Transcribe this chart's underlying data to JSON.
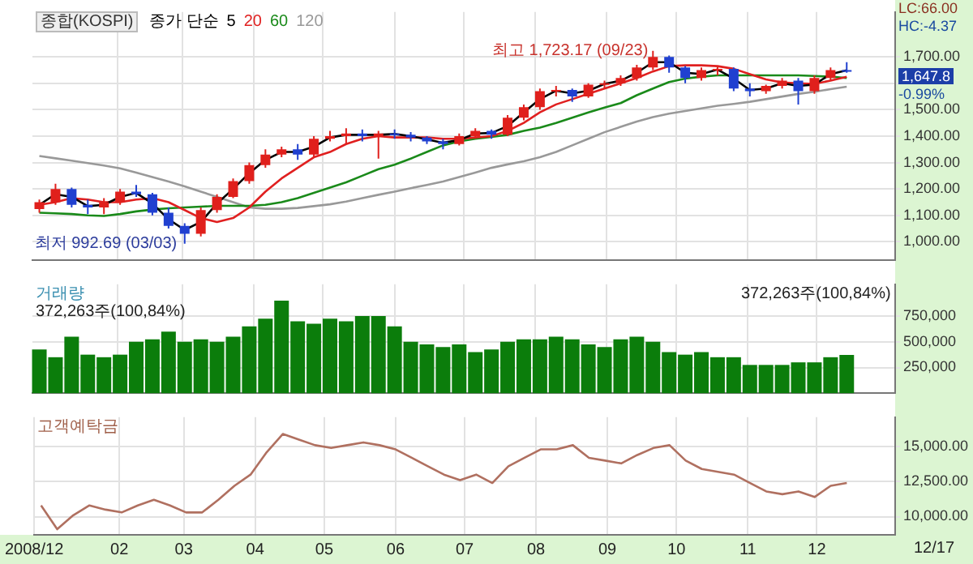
{
  "chart_data": [
    {
      "type": "candlestick",
      "title": "종합(KOSPI)",
      "legend_title": "종가 단순",
      "legend": "top left",
      "grid": true,
      "tick_labels": "y",
      "x": [
        "2008-12-29",
        "2009-01-05",
        "2009-01-12",
        "2009-01-19",
        "2009-01-26",
        "2009-02-02",
        "2009-02-09",
        "2009-02-16",
        "2009-02-23",
        "2009-03-02",
        "2009-03-09",
        "2009-03-16",
        "2009-03-23",
        "2009-03-30",
        "2009-04-06",
        "2009-04-13",
        "2009-04-20",
        "2009-04-27",
        "2009-05-04",
        "2009-05-11",
        "2009-05-18",
        "2009-05-25",
        "2009-06-01",
        "2009-06-08",
        "2009-06-15",
        "2009-06-22",
        "2009-06-29",
        "2009-07-06",
        "2009-07-13",
        "2009-07-20",
        "2009-07-27",
        "2009-08-03",
        "2009-08-10",
        "2009-08-17",
        "2009-08-24",
        "2009-08-31",
        "2009-09-07",
        "2009-09-14",
        "2009-09-21",
        "2009-09-28",
        "2009-10-05",
        "2009-10-12",
        "2009-10-19",
        "2009-10-26",
        "2009-11-02",
        "2009-11-09",
        "2009-11-16",
        "2009-11-23",
        "2009-11-30",
        "2009-12-07",
        "2009-12-14"
      ],
      "ohlc": [
        [
          1124,
          1160,
          1110,
          1150
        ],
        [
          1150,
          1220,
          1140,
          1200
        ],
        [
          1200,
          1205,
          1130,
          1140
        ],
        [
          1140,
          1160,
          1105,
          1130
        ],
        [
          1130,
          1165,
          1105,
          1150
        ],
        [
          1150,
          1200,
          1140,
          1190
        ],
        [
          1190,
          1215,
          1170,
          1180
        ],
        [
          1180,
          1185,
          1100,
          1110
        ],
        [
          1110,
          1130,
          1050,
          1060
        ],
        [
          1060,
          1070,
          992.69,
          1030
        ],
        [
          1030,
          1130,
          1020,
          1120
        ],
        [
          1120,
          1180,
          1110,
          1170
        ],
        [
          1170,
          1240,
          1165,
          1230
        ],
        [
          1230,
          1300,
          1220,
          1290
        ],
        [
          1290,
          1350,
          1280,
          1330
        ],
        [
          1330,
          1360,
          1320,
          1350
        ],
        [
          1350,
          1370,
          1310,
          1330
        ],
        [
          1330,
          1400,
          1320,
          1390
        ],
        [
          1390,
          1420,
          1380,
          1400
        ],
        [
          1400,
          1430,
          1370,
          1410
        ],
        [
          1410,
          1425,
          1380,
          1400
        ],
        [
          1400,
          1420,
          1315,
          1410
        ],
        [
          1410,
          1425,
          1390,
          1405
        ],
        [
          1405,
          1415,
          1380,
          1395
        ],
        [
          1395,
          1400,
          1370,
          1380
        ],
        [
          1380,
          1390,
          1350,
          1370
        ],
        [
          1370,
          1410,
          1365,
          1400
        ],
        [
          1400,
          1430,
          1390,
          1420
        ],
        [
          1420,
          1425,
          1390,
          1405
        ],
        [
          1405,
          1480,
          1400,
          1470
        ],
        [
          1470,
          1520,
          1460,
          1510
        ],
        [
          1510,
          1580,
          1500,
          1570
        ],
        [
          1570,
          1590,
          1550,
          1575
        ],
        [
          1575,
          1580,
          1530,
          1550
        ],
        [
          1550,
          1600,
          1545,
          1595
        ],
        [
          1595,
          1610,
          1580,
          1600
        ],
        [
          1600,
          1630,
          1590,
          1620
        ],
        [
          1620,
          1670,
          1610,
          1660
        ],
        [
          1660,
          1723.17,
          1650,
          1700
        ],
        [
          1700,
          1705,
          1640,
          1660
        ],
        [
          1660,
          1665,
          1600,
          1620
        ],
        [
          1620,
          1660,
          1610,
          1650
        ],
        [
          1650,
          1665,
          1630,
          1655
        ],
        [
          1655,
          1660,
          1570,
          1580
        ],
        [
          1580,
          1600,
          1550,
          1570
        ],
        [
          1570,
          1595,
          1560,
          1590
        ],
        [
          1590,
          1620,
          1580,
          1610
        ],
        [
          1610,
          1620,
          1520,
          1570
        ],
        [
          1570,
          1630,
          1560,
          1620
        ],
        [
          1620,
          1660,
          1610,
          1650
        ],
        [
          1650,
          1680,
          1640,
          1647.8
        ]
      ],
      "colors": [
        "#e0201c",
        "#e0201c",
        "#2040d0",
        "#2040d0",
        "#e0201c",
        "#e0201c",
        "#2040d0",
        "#2040d0",
        "#2040d0",
        "#2040d0",
        "#e0201c",
        "#e0201c",
        "#e0201c",
        "#e0201c",
        "#e0201c",
        "#e0201c",
        "#2040d0",
        "#e0201c",
        "#e0201c",
        "#e0201c",
        "#2040d0",
        "#e0201c",
        "#2040d0",
        "#2040d0",
        "#2040d0",
        "#2040d0",
        "#e0201c",
        "#e0201c",
        "#2040d0",
        "#e0201c",
        "#e0201c",
        "#e0201c",
        "#e0201c",
        "#2040d0",
        "#e0201c",
        "#e0201c",
        "#e0201c",
        "#e0201c",
        "#e0201c",
        "#2040d0",
        "#2040d0",
        "#e0201c",
        "#e0201c",
        "#2040d0",
        "#2040d0",
        "#e0201c",
        "#e0201c",
        "#2040d0",
        "#e0201c",
        "#e0201c",
        "#2040d0"
      ],
      "series": [
        {
          "name": "5",
          "type": "line",
          "color": "#000000",
          "values": [
            1140,
            1180,
            1170,
            1135,
            1140,
            1170,
            1185,
            1145,
            1085,
            1045,
            1075,
            1145,
            1200,
            1260,
            1310,
            1340,
            1340,
            1360,
            1395,
            1405,
            1405,
            1405,
            1408,
            1400,
            1388,
            1375,
            1385,
            1410,
            1412,
            1438,
            1490,
            1540,
            1572,
            1562,
            1572,
            1598,
            1610,
            1640,
            1680,
            1680,
            1640,
            1635,
            1652,
            1618,
            1575,
            1580,
            1600,
            1590,
            1595,
            1635,
            1649
          ]
        },
        {
          "name": "20",
          "type": "line",
          "color": "#e02020",
          "values": [
            1140,
            1150,
            1165,
            1160,
            1150,
            1150,
            1160,
            1165,
            1150,
            1120,
            1090,
            1075,
            1090,
            1130,
            1190,
            1240,
            1280,
            1320,
            1340,
            1370,
            1390,
            1400,
            1395,
            1395,
            1395,
            1390,
            1390,
            1395,
            1400,
            1420,
            1450,
            1490,
            1520,
            1540,
            1560,
            1580,
            1600,
            1620,
            1645,
            1665,
            1668,
            1668,
            1665,
            1655,
            1635,
            1615,
            1603,
            1600,
            1598,
            1610,
            1625
          ]
        },
        {
          "name": "60",
          "type": "line",
          "color": "#1a8a1a",
          "values": [
            1110,
            1108,
            1105,
            1100,
            1098,
            1105,
            1115,
            1122,
            1127,
            1130,
            1133,
            1136,
            1136,
            1136,
            1140,
            1150,
            1165,
            1185,
            1205,
            1225,
            1250,
            1275,
            1292,
            1315,
            1340,
            1365,
            1380,
            1390,
            1397,
            1405,
            1420,
            1432,
            1450,
            1470,
            1490,
            1508,
            1525,
            1555,
            1580,
            1605,
            1618,
            1625,
            1630,
            1630,
            1630,
            1630,
            1630,
            1630,
            1628,
            1625,
            1620
          ]
        },
        {
          "name": "120",
          "type": "line",
          "color": "#999999",
          "values": [
            1325,
            1316,
            1307,
            1298,
            1289,
            1278,
            1262,
            1245,
            1228,
            1210,
            1190,
            1170,
            1150,
            1130,
            1125,
            1125,
            1128,
            1135,
            1142,
            1152,
            1165,
            1178,
            1190,
            1203,
            1215,
            1228,
            1245,
            1262,
            1280,
            1293,
            1305,
            1320,
            1340,
            1365,
            1390,
            1415,
            1435,
            1455,
            1472,
            1485,
            1495,
            1505,
            1515,
            1522,
            1530,
            1540,
            1550,
            1560,
            1568,
            1578,
            1587
          ]
        }
      ],
      "xlim": [
        "2008-12-26",
        "2010-01-04"
      ],
      "xticks": [
        {
          "value": "2009-02-01",
          "label": null
        },
        {
          "value": "2009-03-01",
          "label": null
        },
        {
          "value": "2009-04-01",
          "label": null
        },
        {
          "value": "2009-05-01",
          "label": null
        },
        {
          "value": "2009-06-01",
          "label": null
        },
        {
          "value": "2009-07-01",
          "label": null
        },
        {
          "value": "2009-08-01",
          "label": null
        },
        {
          "value": "2009-09-01",
          "label": null
        },
        {
          "value": "2009-10-01",
          "label": null
        },
        {
          "value": "2009-11-01",
          "label": null
        },
        {
          "value": "2009-12-01",
          "label": null
        }
      ],
      "ylim": [
        930,
        1870
      ],
      "yticks": [
        {
          "value": 1000,
          "label": "1,000.00"
        },
        {
          "value": 1100,
          "label": "1,100.00"
        },
        {
          "value": 1200,
          "label": "1,200.00"
        },
        {
          "value": 1300,
          "label": "1,300.00"
        },
        {
          "value": 1400,
          "label": "1,400.00"
        },
        {
          "value": 1500,
          "label": "1,500.00"
        },
        {
          "value": 1600,
          "label": null
        },
        {
          "value": 1700,
          "label": "1,700.00"
        }
      ],
      "annotations": [
        {
          "text": "최고 1,723.17 (09/23)",
          "x": "2009-09-23",
          "y": 1723.17
        },
        {
          "text": "최저 992.69 (03/03)",
          "x": "2009-03-03",
          "y": 992.69
        },
        "LC:66.00",
        "HC:-4.37",
        "1,647.8",
        "-0.99%"
      ]
    },
    {
      "type": "bar",
      "title": "거래량",
      "color": "#0b7d0b",
      "grid": true,
      "tick_labels": "y",
      "x": [
        "2008-12-29",
        "2009-01-05",
        "2009-01-12",
        "2009-01-19",
        "2009-01-26",
        "2009-02-02",
        "2009-02-09",
        "2009-02-16",
        "2009-02-23",
        "2009-03-02",
        "2009-03-09",
        "2009-03-16",
        "2009-03-23",
        "2009-03-30",
        "2009-04-06",
        "2009-04-13",
        "2009-04-20",
        "2009-04-27",
        "2009-05-04",
        "2009-05-11",
        "2009-05-18",
        "2009-05-25",
        "2009-06-01",
        "2009-06-08",
        "2009-06-15",
        "2009-06-22",
        "2009-06-29",
        "2009-07-06",
        "2009-07-13",
        "2009-07-20",
        "2009-07-27",
        "2009-08-03",
        "2009-08-10",
        "2009-08-17",
        "2009-08-24",
        "2009-08-31",
        "2009-09-07",
        "2009-09-14",
        "2009-09-21",
        "2009-09-28",
        "2009-10-05",
        "2009-10-12",
        "2009-10-19",
        "2009-10-26",
        "2009-11-02",
        "2009-11-09",
        "2009-11-16",
        "2009-11-23",
        "2009-11-30",
        "2009-12-07",
        "2009-12-14"
      ],
      "values": [
        425000,
        350000,
        550000,
        375000,
        350000,
        375000,
        500000,
        525000,
        600000,
        500000,
        525000,
        500000,
        550000,
        650000,
        725000,
        900000,
        700000,
        675000,
        725000,
        700000,
        750000,
        750000,
        650000,
        500000,
        475000,
        450000,
        475000,
        400000,
        425000,
        500000,
        525000,
        525000,
        550000,
        525000,
        475000,
        450000,
        525000,
        550000,
        500000,
        400000,
        375000,
        400000,
        350000,
        350000,
        275000,
        275000,
        275000,
        300000,
        300000,
        350000,
        372263
      ],
      "xlim": [
        "2008-12-26",
        "2010-01-04"
      ],
      "xticks": [
        {
          "value": "2009-02-01",
          "label": null
        },
        {
          "value": "2009-03-01",
          "label": null
        },
        {
          "value": "2009-04-01",
          "label": null
        },
        {
          "value": "2009-05-01",
          "label": null
        },
        {
          "value": "2009-06-01",
          "label": null
        },
        {
          "value": "2009-07-01",
          "label": null
        },
        {
          "value": "2009-08-01",
          "label": null
        },
        {
          "value": "2009-09-01",
          "label": null
        },
        {
          "value": "2009-10-01",
          "label": null
        },
        {
          "value": "2009-11-01",
          "label": null
        },
        {
          "value": "2009-12-01",
          "label": null
        }
      ],
      "ylim": [
        0,
        1060000
      ],
      "yticks": [
        {
          "value": 250000,
          "label": "250,000"
        },
        {
          "value": 500000,
          "label": "500,000"
        },
        {
          "value": 750000,
          "label": "750,000"
        }
      ],
      "annotations": [
        "372,263주(100,84%)",
        "372,263주(100,84%)"
      ]
    },
    {
      "type": "line",
      "title": "고객예탁금",
      "color": "#b07060",
      "grid": true,
      "x": [
        "2008-12-29",
        "2009-01-05",
        "2009-01-12",
        "2009-01-19",
        "2009-01-26",
        "2009-02-02",
        "2009-02-09",
        "2009-02-16",
        "2009-02-23",
        "2009-03-02",
        "2009-03-09",
        "2009-03-16",
        "2009-03-23",
        "2009-03-30",
        "2009-04-06",
        "2009-04-13",
        "2009-04-20",
        "2009-04-27",
        "2009-05-04",
        "2009-05-11",
        "2009-05-18",
        "2009-05-25",
        "2009-06-01",
        "2009-06-08",
        "2009-06-15",
        "2009-06-22",
        "2009-06-29",
        "2009-07-06",
        "2009-07-13",
        "2009-07-20",
        "2009-07-27",
        "2009-08-03",
        "2009-08-10",
        "2009-08-17",
        "2009-08-24",
        "2009-08-31",
        "2009-09-07",
        "2009-09-14",
        "2009-09-21",
        "2009-09-28",
        "2009-10-05",
        "2009-10-12",
        "2009-10-19",
        "2009-10-26",
        "2009-11-02",
        "2009-11-09",
        "2009-11-16",
        "2009-11-23",
        "2009-11-30",
        "2009-12-07",
        "2009-12-14"
      ],
      "values": [
        10800,
        9100,
        10100,
        10800,
        10500,
        10300,
        10800,
        11200,
        10800,
        10300,
        10300,
        11200,
        12200,
        13000,
        14600,
        15900,
        15500,
        15100,
        14900,
        15100,
        15300,
        15100,
        14800,
        14200,
        13600,
        13000,
        12600,
        13000,
        12400,
        13600,
        14200,
        14800,
        14800,
        15100,
        14200,
        14000,
        13800,
        14400,
        14900,
        15100,
        14000,
        13400,
        13200,
        13000,
        12400,
        11800,
        11600,
        11800,
        11400,
        12200,
        12400
      ],
      "xlim": [
        "2008-12-26",
        "2010-01-04"
      ],
      "xticks": [
        {
          "value": "2008-12-26",
          "label": "2008/12"
        },
        {
          "value": "2009-02-01",
          "label": "02"
        },
        {
          "value": "2009-03-01",
          "label": "03"
        },
        {
          "value": "2009-04-01",
          "label": "04"
        },
        {
          "value": "2009-05-01",
          "label": "05"
        },
        {
          "value": "2009-06-01",
          "label": "06"
        },
        {
          "value": "2009-07-01",
          "label": "07"
        },
        {
          "value": "2009-08-01",
          "label": "08"
        },
        {
          "value": "2009-09-01",
          "label": "09"
        },
        {
          "value": "2009-10-01",
          "label": "10"
        },
        {
          "value": "2009-11-01",
          "label": "11"
        },
        {
          "value": "2009-12-01",
          "label": "12"
        }
      ],
      "ylim": [
        8700,
        17100
      ],
      "yticks": [
        {
          "value": 10000,
          "label": "10,000.00"
        },
        {
          "value": 12500,
          "label": "12,500.00"
        },
        {
          "value": 15000,
          "label": "15,000.00"
        }
      ],
      "annotations": [
        "12/17"
      ]
    }
  ]
}
